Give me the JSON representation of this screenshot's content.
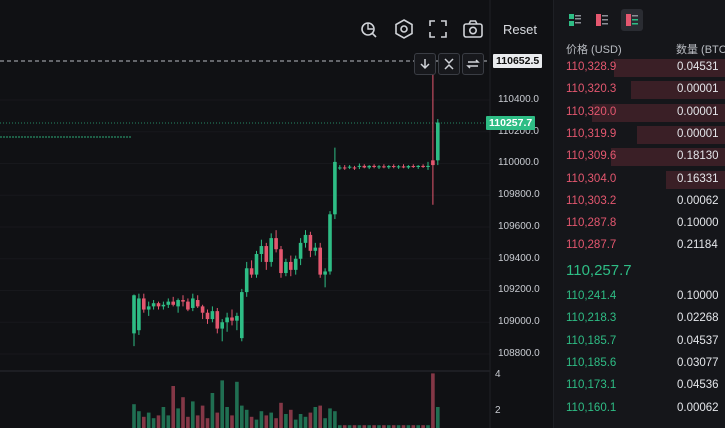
{
  "toolbar": {
    "reset_label": "Reset",
    "icons": [
      "drawing-tool-icon",
      "settings-icon",
      "fullscreen-icon",
      "camera-icon"
    ]
  },
  "chart": {
    "price_ticks": [
      "110400.0",
      "110200.0",
      "110000.0",
      "109800.0",
      "109600.0",
      "109400.0",
      "109200.0",
      "109000.0",
      "108800.0"
    ],
    "high_tag": "110652.5",
    "last_tag": "110257.7",
    "volume_ticks": [
      "4",
      "2"
    ],
    "colors": {
      "up": "#2ebd85",
      "down": "#e4576f",
      "background": "#101114"
    }
  },
  "chart_data": {
    "type": "candlestick",
    "ylim": [
      108700,
      110700
    ],
    "candles": [
      [
        109170,
        109175,
        108850,
        108930,
        "up"
      ],
      [
        108950,
        109180,
        108920,
        109150,
        "up"
      ],
      [
        109150,
        109180,
        109060,
        109080,
        "down"
      ],
      [
        109080,
        109130,
        109040,
        109100,
        "up"
      ],
      [
        109100,
        109140,
        109080,
        109120,
        "up"
      ],
      [
        109120,
        109130,
        109080,
        109100,
        "down"
      ],
      [
        109100,
        109130,
        109080,
        109110,
        "up"
      ],
      [
        109110,
        109150,
        109090,
        109130,
        "up"
      ],
      [
        109130,
        109160,
        109100,
        109110,
        "down"
      ],
      [
        109100,
        109150,
        109060,
        109140,
        "up"
      ],
      [
        109140,
        109170,
        109100,
        109130,
        "down"
      ],
      [
        109130,
        109150,
        109070,
        109080,
        "down"
      ],
      [
        109090,
        109180,
        109070,
        109150,
        "up"
      ],
      [
        109140,
        109170,
        109090,
        109100,
        "down"
      ],
      [
        109100,
        109110,
        109020,
        109060,
        "down"
      ],
      [
        109060,
        109080,
        108990,
        109020,
        "down"
      ],
      [
        109020,
        109100,
        109000,
        109070,
        "up"
      ],
      [
        109070,
        109090,
        108930,
        108960,
        "down"
      ],
      [
        108960,
        109020,
        108880,
        109000,
        "up"
      ],
      [
        109000,
        109060,
        108940,
        109030,
        "up"
      ],
      [
        109030,
        109080,
        108980,
        109010,
        "down"
      ],
      [
        109010,
        109060,
        108950,
        109040,
        "up"
      ],
      [
        108900,
        109210,
        108880,
        109190,
        "up"
      ],
      [
        109190,
        109380,
        109160,
        109340,
        "up"
      ],
      [
        109340,
        109390,
        109280,
        109300,
        "down"
      ],
      [
        109300,
        109450,
        109280,
        109430,
        "up"
      ],
      [
        109430,
        109520,
        109380,
        109480,
        "up"
      ],
      [
        109480,
        109500,
        109330,
        109380,
        "down"
      ],
      [
        109380,
        109560,
        109350,
        109530,
        "up"
      ],
      [
        109530,
        109580,
        109440,
        109460,
        "down"
      ],
      [
        109460,
        109480,
        109280,
        109310,
        "down"
      ],
      [
        109310,
        109400,
        109290,
        109380,
        "up"
      ],
      [
        109380,
        109420,
        109290,
        109330,
        "down"
      ],
      [
        109330,
        109420,
        109300,
        109400,
        "up"
      ],
      [
        109400,
        109530,
        109360,
        109500,
        "up"
      ],
      [
        109500,
        109580,
        109470,
        109550,
        "up"
      ],
      [
        109550,
        109570,
        109410,
        109450,
        "down"
      ],
      [
        109450,
        109500,
        109420,
        109470,
        "up"
      ],
      [
        109470,
        109500,
        109280,
        109300,
        "down"
      ],
      [
        109300,
        109340,
        109220,
        109320,
        "up"
      ],
      [
        109320,
        109700,
        109300,
        109680,
        "up"
      ],
      [
        109680,
        110100,
        109650,
        110010,
        "up"
      ],
      [
        109970,
        109990,
        109960,
        109975,
        "up"
      ],
      [
        109970,
        109990,
        109960,
        109975,
        "down"
      ],
      [
        109975,
        109990,
        109965,
        109980,
        "up"
      ],
      [
        109975,
        109985,
        109960,
        109970,
        "down"
      ],
      [
        109980,
        110000,
        109965,
        109985,
        "up"
      ],
      [
        109985,
        109995,
        109970,
        109975,
        "down"
      ],
      [
        109975,
        109990,
        109965,
        109985,
        "up"
      ],
      [
        109985,
        109995,
        109970,
        109978,
        "down"
      ],
      [
        109978,
        109990,
        109965,
        109982,
        "up"
      ],
      [
        109982,
        109995,
        109970,
        109976,
        "down"
      ],
      [
        109976,
        109990,
        109966,
        109984,
        "up"
      ],
      [
        109984,
        109995,
        109970,
        109978,
        "down"
      ],
      [
        109978,
        109990,
        109966,
        109982,
        "up"
      ],
      [
        109982,
        109995,
        109970,
        109975,
        "down"
      ],
      [
        109975,
        109990,
        109966,
        109984,
        "up"
      ],
      [
        109984,
        109995,
        109972,
        109978,
        "down"
      ],
      [
        109978,
        109990,
        109966,
        109985,
        "up"
      ],
      [
        109985,
        109995,
        109972,
        109978,
        "down"
      ],
      [
        109978,
        110010,
        109960,
        109985,
        "up"
      ],
      [
        109990,
        110610,
        109740,
        110020,
        "down"
      ],
      [
        110020,
        110280,
        109990,
        110258,
        "up"
      ]
    ],
    "volumes": [
      1.7,
      1.2,
      0.8,
      1.1,
      0.7,
      0.9,
      1.5,
      0.9,
      3.0,
      1.4,
      2.2,
      0.8,
      1.9,
      0.9,
      1.6,
      0.7,
      2.5,
      1.1,
      3.4,
      1.5,
      0.9,
      3.3,
      1.6,
      1.3,
      0.8,
      0.6,
      1.2,
      0.9,
      1.1,
      0.7,
      1.8,
      1.0,
      1.3,
      0.6,
      1.0,
      0.8,
      1.1,
      1.5,
      1.6,
      0.7,
      1.4,
      1.2,
      0.2,
      0.2,
      0.2,
      0.2,
      0.2,
      0.2,
      0.2,
      0.2,
      0.2,
      0.2,
      0.2,
      0.2,
      0.2,
      0.2,
      0.2,
      0.2,
      0.2,
      0.2,
      0.2,
      3.9,
      1.5
    ],
    "high_line": 110652.5,
    "last_price_line": 110257.7,
    "volume_ticks": [
      4,
      2
    ]
  },
  "orderbook": {
    "price_header": "价格 (USD)",
    "qty_header": "数量 (BTC",
    "mid_price": "110,257.7",
    "asks": [
      {
        "price": "110,328.9",
        "qty": "0.04531",
        "depth": 0.65
      },
      {
        "price": "110,320.3",
        "qty": "0.00001",
        "depth": 0.55
      },
      {
        "price": "110,320.0",
        "qty": "0.00001",
        "depth": 0.78
      },
      {
        "price": "110,319.9",
        "qty": "0.00001",
        "depth": 0.52
      },
      {
        "price": "110,309.6",
        "qty": "0.18130",
        "depth": 0.67
      },
      {
        "price": "110,304.0",
        "qty": "0.16331",
        "depth": 0.35
      },
      {
        "price": "110,303.2",
        "qty": "0.00062",
        "depth": 0
      },
      {
        "price": "110,287.8",
        "qty": "0.10000",
        "depth": 0
      },
      {
        "price": "110,287.7",
        "qty": "0.21184",
        "depth": 0
      }
    ],
    "bids": [
      {
        "price": "110,241.4",
        "qty": "0.10000"
      },
      {
        "price": "110,218.3",
        "qty": "0.02268"
      },
      {
        "price": "110,185.7",
        "qty": "0.04537"
      },
      {
        "price": "110,185.6",
        "qty": "0.03077"
      },
      {
        "price": "110,173.1",
        "qty": "0.04536"
      },
      {
        "price": "110,160.1",
        "qty": "0.00062"
      }
    ],
    "colors": {
      "ask": "#e4576f",
      "bid": "#2ebd85",
      "ask_depth": "#3a1f26"
    }
  }
}
